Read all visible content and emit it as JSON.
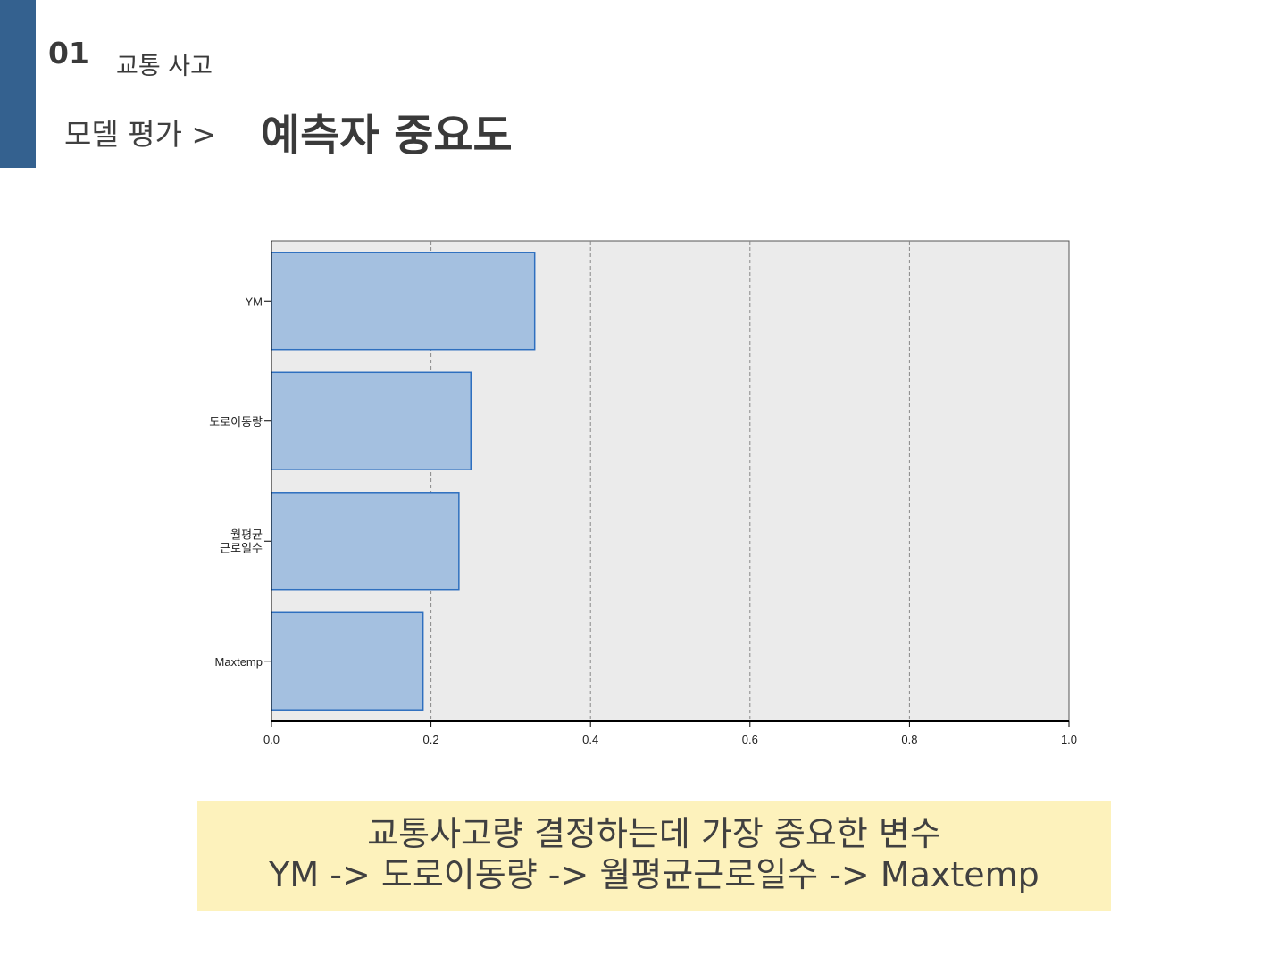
{
  "header": {
    "section_number": "01",
    "section_title": "교통 사고",
    "breadcrumb": "모델 평가 >",
    "page_title": "예측자 중요도"
  },
  "colors": {
    "accent": "#34618f",
    "bar_fill": "#a4c0e0",
    "bar_stroke": "#2e6fbf",
    "plot_bg": "#ebebeb",
    "note_bg": "#fdf2bc"
  },
  "chart_data": {
    "type": "bar",
    "orientation": "horizontal",
    "categories": [
      "YM",
      "도로이동량",
      "월평균 근로일수",
      "Maxtemp"
    ],
    "values": [
      0.33,
      0.25,
      0.235,
      0.19
    ],
    "xlim": [
      0,
      1.0
    ],
    "xticks": [
      "0.0",
      "0.2",
      "0.4",
      "0.6",
      "0.8",
      "1.0"
    ],
    "grid": "vertical dashed at 0.2, 0.4, 0.6, 0.8",
    "legend": "none"
  },
  "note": {
    "line1": "교통사고량 결정하는데 가장 중요한 변수",
    "line2": "YM -> 도로이동량 -> 월평균근로일수 -> Maxtemp"
  }
}
